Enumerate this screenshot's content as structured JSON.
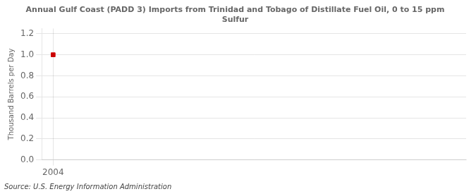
{
  "chart_data": {
    "type": "scatter",
    "title": "Annual Gulf Coast (PADD 3) Imports from Trinidad and Tobago of Distillate Fuel Oil, 0 to 15 ppm\nSulfur",
    "ylabel": "Thousand Barrels per Day",
    "source": "Source: U.S. Energy Information Administration",
    "x": [
      2004
    ],
    "values": [
      1.0
    ],
    "color": "#cc0000",
    "marker": "square",
    "xlim": [
      2003.5,
      2022
    ],
    "xticks": [
      2004
    ],
    "ylim": [
      0.0,
      1.25
    ],
    "yticks": [
      {
        "value": 0.0,
        "label": "0.0"
      },
      0.2,
      0.4,
      0.6,
      0.8,
      {
        "value": 1.0,
        "label": "1.0"
      },
      1.2
    ],
    "grid": true
  }
}
